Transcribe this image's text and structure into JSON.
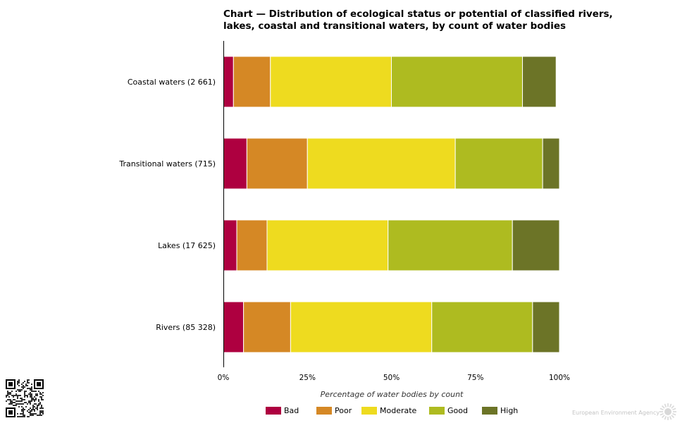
{
  "chart_data": {
    "type": "bar",
    "orientation": "horizontal",
    "stacked": true,
    "title": "Chart — Distribution of ecological status or potential of classified rivers, lakes, coastal and transitional waters, by count of water bodies",
    "xlabel": "Percentage of water bodies by count",
    "ylabel": "",
    "xlim": [
      0,
      100
    ],
    "x_ticks": [
      "0%",
      "25%",
      "50%",
      "75%",
      "100%"
    ],
    "categories": [
      "Coastal waters (2 661)",
      "Transitional waters (715)",
      "Lakes (17 625)",
      "Rivers (85 328)"
    ],
    "series": [
      {
        "name": "Bad",
        "color": "#ae0040",
        "values": [
          3,
          7,
          4,
          6
        ]
      },
      {
        "name": "Poor",
        "color": "#d58825",
        "values": [
          11,
          18,
          9,
          14
        ]
      },
      {
        "name": "Moderate",
        "color": "#eedb1f",
        "values": [
          36,
          44,
          36,
          42
        ]
      },
      {
        "name": "Good",
        "color": "#aebb20",
        "values": [
          39,
          26,
          37,
          30
        ]
      },
      {
        "name": "High",
        "color": "#6c7427",
        "values": [
          10,
          5,
          14,
          8
        ]
      }
    ],
    "legend_position": "bottom",
    "grid": false
  },
  "footer": {
    "logo_text": "European Environment Agency"
  }
}
